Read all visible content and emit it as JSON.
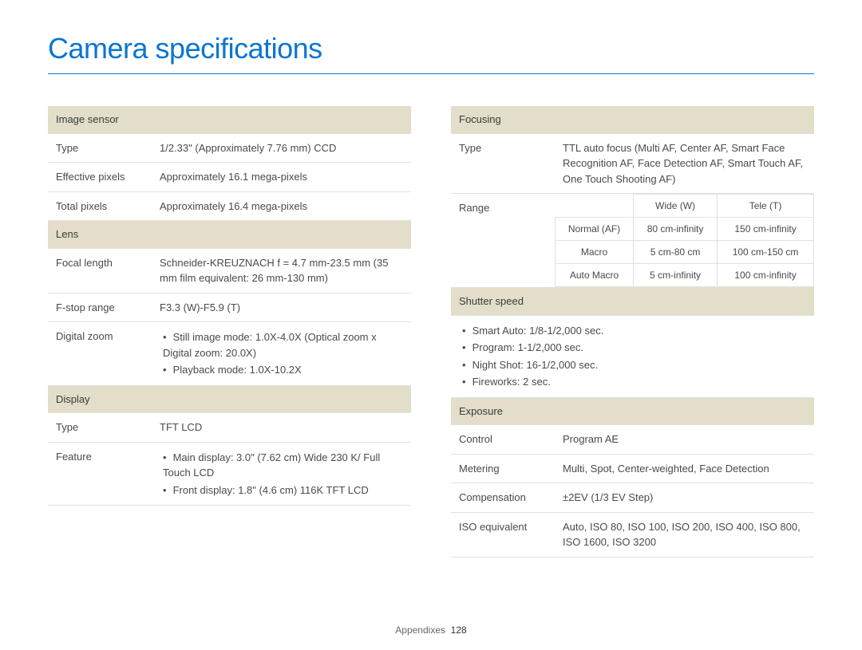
{
  "title": "Camera specifications",
  "footer": {
    "label": "Appendixes",
    "page": "128"
  },
  "left": {
    "image_sensor": {
      "header": "Image sensor",
      "rows": [
        {
          "label": "Type",
          "value": "1/2.33\" (Approximately 7.76 mm) CCD"
        },
        {
          "label": "Effective pixels",
          "value": "Approximately 16.1 mega-pixels"
        },
        {
          "label": "Total pixels",
          "value": "Approximately 16.4 mega-pixels"
        }
      ]
    },
    "lens": {
      "header": "Lens",
      "focal_label": "Focal length",
      "focal_value": "Schneider-KREUZNACH f = 4.7 mm-23.5 mm (35 mm film equivalent: 26 mm-130 mm)",
      "fstop_label": "F-stop range",
      "fstop_value": "F3.3 (W)-F5.9 (T)",
      "dzoom_label": "Digital zoom",
      "dzoom_items": [
        "Still image mode: 1.0X-4.0X (Optical zoom x Digital zoom: 20.0X)",
        "Playback mode: 1.0X-10.2X"
      ]
    },
    "display": {
      "header": "Display",
      "type_label": "Type",
      "type_value": "TFT LCD",
      "feature_label": "Feature",
      "feature_items": [
        "Main display: 3.0\" (7.62 cm) Wide 230 K/ Full Touch LCD",
        "Front display: 1.8\" (4.6 cm) 116K TFT LCD"
      ]
    }
  },
  "right": {
    "focusing": {
      "header": "Focusing",
      "type_label": "Type",
      "type_value": "TTL auto focus (Multi AF, Center AF, Smart Face Recognition AF, Face Detection AF, Smart Touch AF, One Touch Shooting AF)",
      "range_label": "Range",
      "range_table": {
        "cols": [
          "",
          "Wide (W)",
          "Tele (T)"
        ],
        "rows": [
          [
            "Normal (AF)",
            "80 cm-infinity",
            "150 cm-infinity"
          ],
          [
            "Macro",
            "5 cm-80 cm",
            "100 cm-150 cm"
          ],
          [
            "Auto Macro",
            "5 cm-infinity",
            "100 cm-infinity"
          ]
        ]
      }
    },
    "shutter": {
      "header": "Shutter speed",
      "items": [
        "Smart Auto: 1/8-1/2,000 sec.",
        "Program: 1-1/2,000 sec.",
        "Night Shot: 16-1/2,000 sec.",
        "Fireworks: 2 sec."
      ]
    },
    "exposure": {
      "header": "Exposure",
      "rows": [
        {
          "label": "Control",
          "value": "Program AE"
        },
        {
          "label": "Metering",
          "value": "Multi, Spot, Center-weighted, Face Detection"
        },
        {
          "label": "Compensation",
          "value": "±2EV (1/3 EV Step)"
        },
        {
          "label": "ISO equivalent",
          "value": "Auto, ISO 80, ISO 100, ISO 200, ISO 400, ISO 800, ISO 1600, ISO 3200"
        }
      ]
    }
  }
}
